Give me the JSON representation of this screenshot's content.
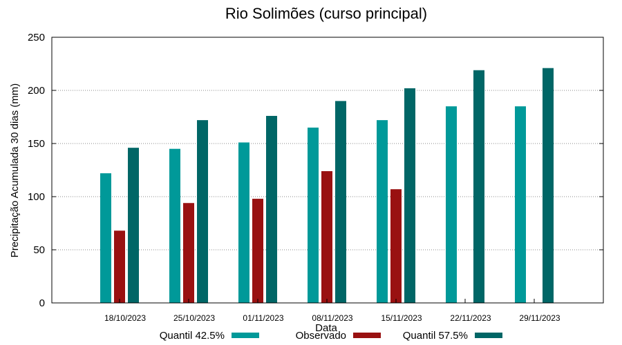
{
  "chart_data": {
    "type": "bar",
    "title": "Rio Solimões (curso principal)",
    "xlabel": "Data",
    "ylabel": "Precipitação Acumulada 30 dias (mm)",
    "ylim": [
      0,
      250
    ],
    "yticks": [
      "0",
      "50",
      "100",
      "150",
      "200",
      "250"
    ],
    "grid": "horizontal dotted",
    "legend_position": "bottom",
    "categories": [
      "18/10/2023",
      "25/10/2023",
      "01/11/2023",
      "08/11/2023",
      "15/11/2023",
      "22/11/2023",
      "29/11/2023"
    ],
    "series": [
      {
        "name": "Quantil 42.5%",
        "color": "#009999",
        "values": [
          122,
          145,
          151,
          165,
          172,
          185,
          185
        ]
      },
      {
        "name": "Observado",
        "color": "#991111",
        "values": [
          68,
          94,
          98,
          124,
          107,
          null,
          null
        ]
      },
      {
        "name": "Quantil 57.5%",
        "color": "#006666",
        "values": [
          146,
          172,
          176,
          190,
          202,
          219,
          221
        ]
      }
    ]
  }
}
